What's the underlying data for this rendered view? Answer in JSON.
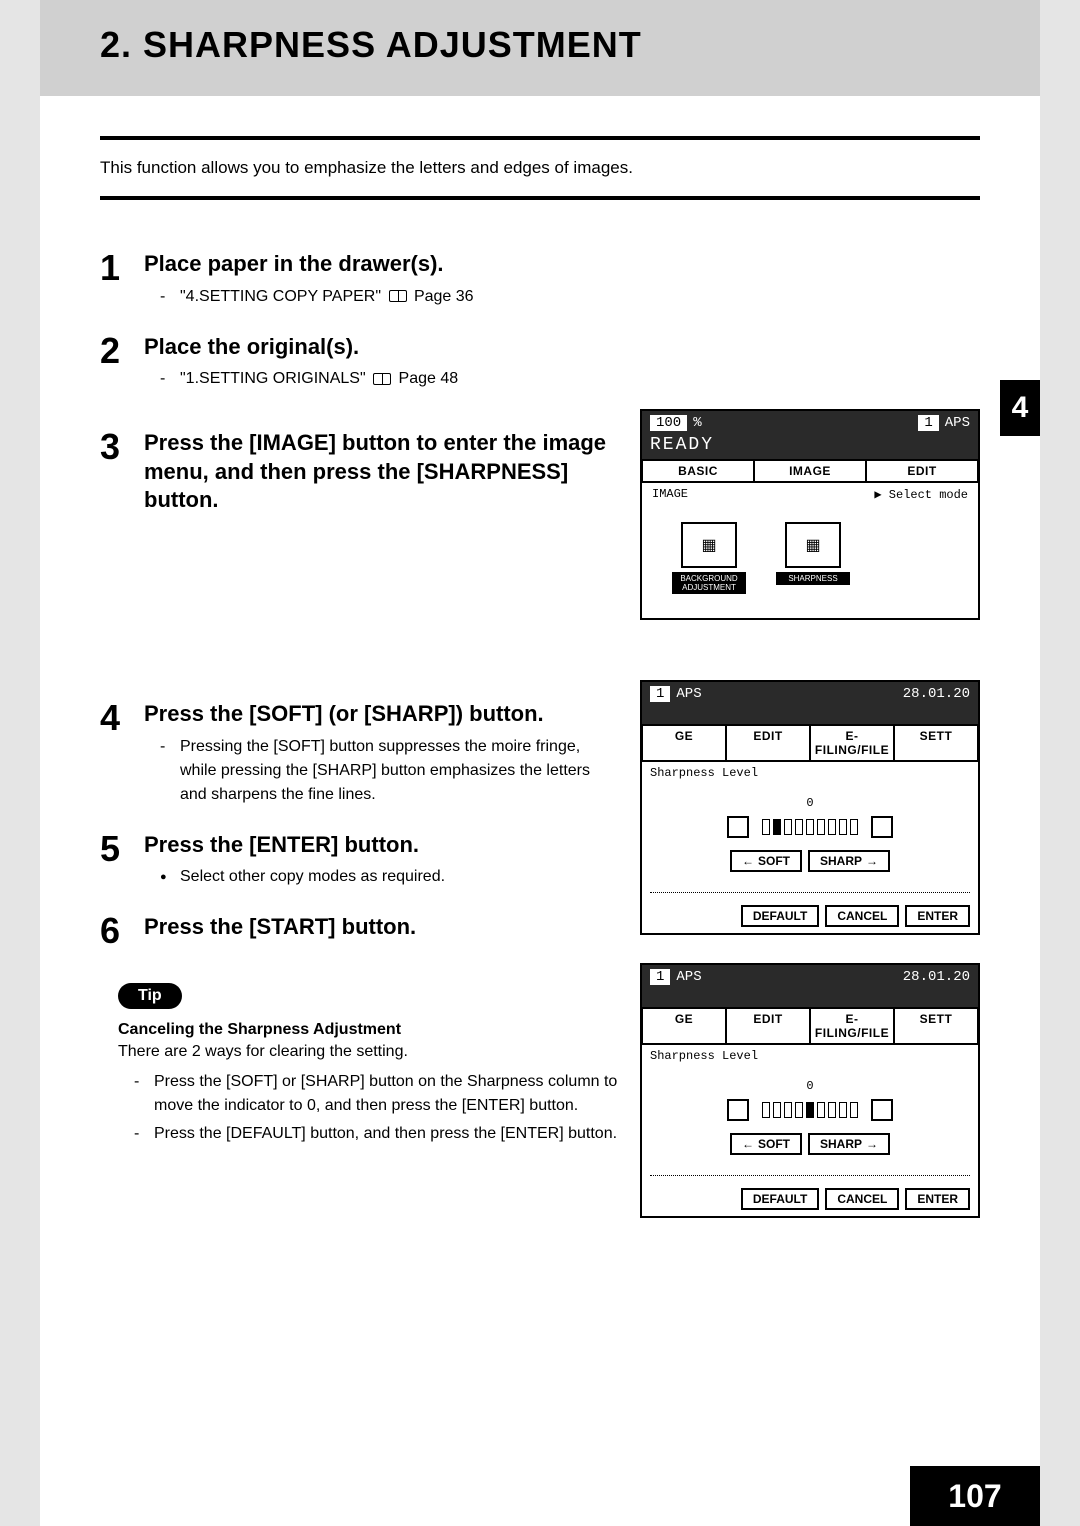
{
  "header": {
    "title": "2. SHARPNESS ADJUSTMENT"
  },
  "intro": "This function allows you to emphasize the letters and edges of images.",
  "side_tab": "4",
  "page_number": "107",
  "steps": [
    {
      "num": "1",
      "title": "Place paper in the drawer(s).",
      "refs": [
        {
          "text_before": "\"4.SETTING COPY PAPER\"",
          "text_after": "Page 36"
        }
      ]
    },
    {
      "num": "2",
      "title": "Place the original(s).",
      "refs": [
        {
          "text_before": "\"1.SETTING ORIGINALS\"",
          "text_after": "Page 48"
        }
      ]
    },
    {
      "num": "3",
      "title": "Press the [IMAGE] button to enter the image menu, and then press the [SHARPNESS] button."
    },
    {
      "num": "4",
      "title": "Press the [SOFT] (or [SHARP]) button.",
      "notes": [
        "Pressing the [SOFT] button suppresses the moire fringe, while pressing the [SHARP] button emphasizes the letters and sharpens the fine lines."
      ]
    },
    {
      "num": "5",
      "title": "Press the [ENTER] button.",
      "bullets": [
        "Select other copy modes as required."
      ]
    },
    {
      "num": "6",
      "title": "Press the [START] button."
    }
  ],
  "tip": {
    "badge": "Tip",
    "title": "Canceling the Sharpness Adjustment",
    "intro": "There are 2 ways for clearing the setting.",
    "items": [
      "Press the [SOFT] or [SHARP] button on the Sharpness column to move the indicator to 0, and then press the [ENTER] button.",
      "Press the [DEFAULT] button, and then press the [ENTER] button."
    ]
  },
  "screen1": {
    "top_left_num": "100",
    "top_left_unit": "%",
    "top_right_num": "1",
    "top_right_text": "APS",
    "ready": "READY",
    "tabs": [
      "BASIC",
      "IMAGE",
      "EDIT"
    ],
    "subrow_left": "IMAGE",
    "subrow_right": "▶ Select mode",
    "icons": [
      {
        "label": "BACKGROUND ADJUSTMENT"
      },
      {
        "label": "SHARPNESS"
      }
    ]
  },
  "screen2": {
    "top_num": "1",
    "top_text": "APS",
    "top_date": "28.01.20",
    "tabs": [
      "GE",
      "EDIT",
      "E-FILING/FILE",
      "SETT"
    ],
    "label": "Sharpness Level",
    "zero": "0",
    "soft": "SOFT",
    "sharp": "SHARP",
    "btns": [
      "DEFAULT",
      "CANCEL",
      "ENTER"
    ],
    "slider_filled_index": 1
  },
  "screen3": {
    "top_num": "1",
    "top_text": "APS",
    "top_date": "28.01.20",
    "tabs": [
      "GE",
      "EDIT",
      "E-FILING/FILE",
      "SETT"
    ],
    "label": "Sharpness Level",
    "zero": "0",
    "soft": "SOFT",
    "sharp": "SHARP",
    "btns": [
      "DEFAULT",
      "CANCEL",
      "ENTER"
    ],
    "slider_filled_index": 4
  }
}
